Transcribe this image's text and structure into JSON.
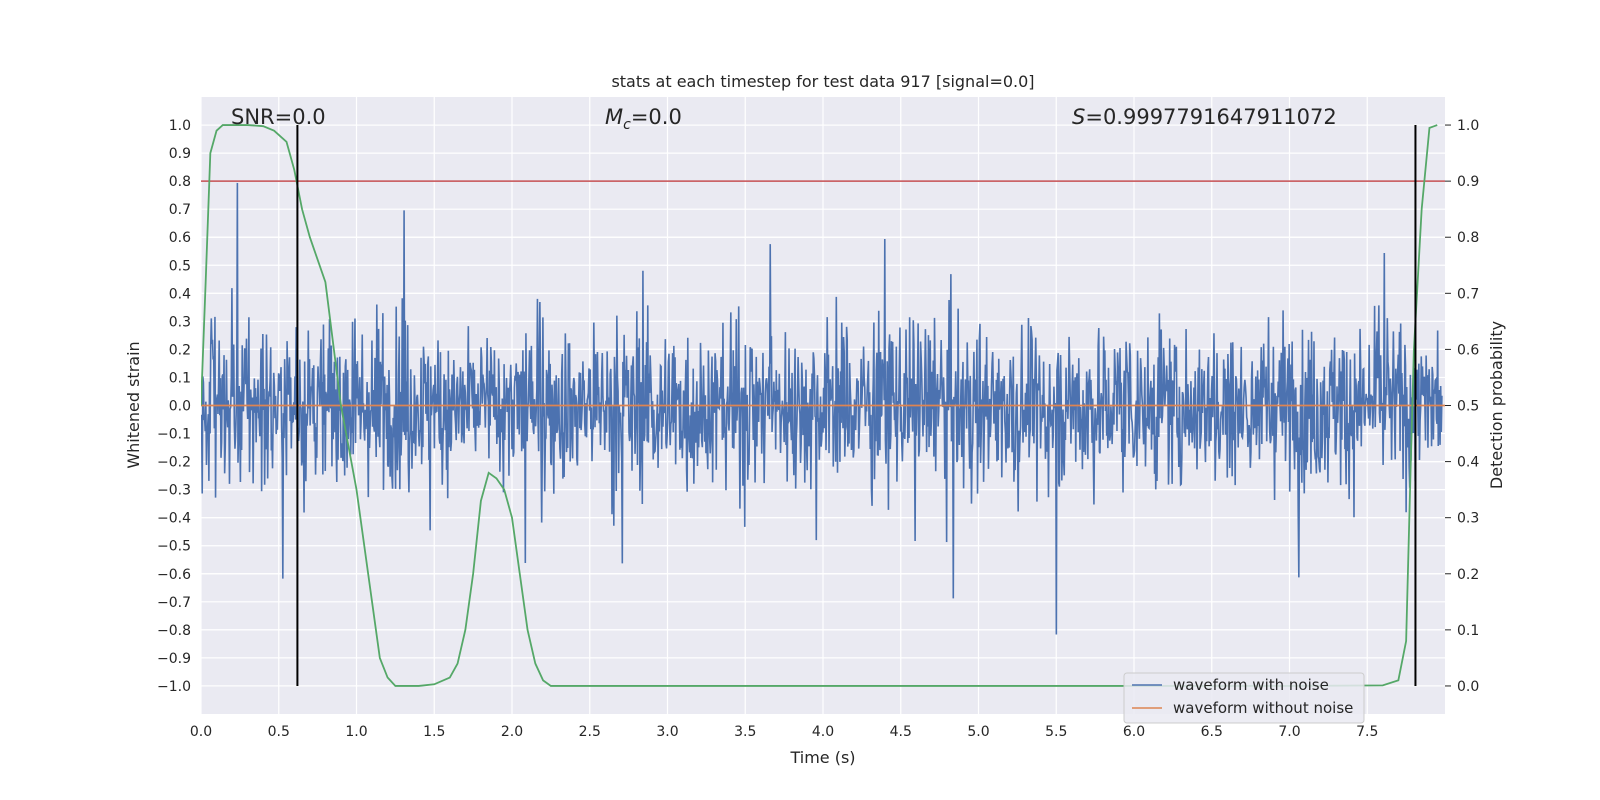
{
  "chart_data": {
    "type": "line",
    "title": "stats at each timestep for test data 917 [signal=0.0]",
    "xlabel": "Time (s)",
    "ylabel": "Whitened strain",
    "y2label": "Detection probability",
    "xlim": [
      0.0,
      8.0
    ],
    "ylim": [
      -1.1,
      1.1
    ],
    "y2lim": [
      -0.05,
      1.05
    ],
    "x_ticks": [
      "0.0",
      "0.5",
      "1.0",
      "1.5",
      "2.0",
      "2.5",
      "3.0",
      "3.5",
      "4.0",
      "4.5",
      "5.0",
      "5.5",
      "6.0",
      "6.5",
      "7.0",
      "7.5"
    ],
    "y_ticks": [
      "1.0",
      "0.9",
      "0.8",
      "0.7",
      "0.6",
      "0.5",
      "0.4",
      "0.3",
      "0.2",
      "0.1",
      "0.0",
      "−0.1",
      "−0.2",
      "−0.3",
      "−0.4",
      "−0.5",
      "−0.6",
      "−0.7",
      "−0.8",
      "−0.9",
      "−1.0"
    ],
    "y2_ticks": [
      "1.0",
      "0.9",
      "0.8",
      "0.7",
      "0.6",
      "0.5",
      "0.4",
      "0.3",
      "0.2",
      "0.1",
      "0.0"
    ],
    "annotations": {
      "snr": "SNR=0.0",
      "mc_symbol": "M",
      "mc_sub": "c",
      "mc_value": "=0.0",
      "s_symbol": "S",
      "s_value": "=0.9997791647911072"
    },
    "threshold": {
      "value": 0.9,
      "axis": "y2",
      "color": "#C44E52"
    },
    "vertical_markers": [
      0.62,
      7.81
    ],
    "series": [
      {
        "name": "waveform with noise",
        "color": "#4C72B0",
        "kind": "noise",
        "envelope": 0.62,
        "samples": 2048
      },
      {
        "name": "waveform without noise",
        "color": "#DD8452",
        "kind": "constant",
        "value": 0.0
      },
      {
        "name": "detection probability",
        "color": "#55A868",
        "axis": "y2",
        "x": [
          0.0,
          0.03,
          0.06,
          0.1,
          0.14,
          0.2,
          0.3,
          0.4,
          0.47,
          0.55,
          0.6,
          0.65,
          0.7,
          0.8,
          0.9,
          1.0,
          1.1,
          1.15,
          1.2,
          1.25,
          1.3,
          1.4,
          1.5,
          1.6,
          1.65,
          1.7,
          1.75,
          1.8,
          1.85,
          1.9,
          1.95,
          2.0,
          2.05,
          2.1,
          2.15,
          2.2,
          2.25,
          2.3,
          3.0,
          4.0,
          5.0,
          6.0,
          7.0,
          7.6,
          7.7,
          7.75,
          7.78,
          7.8,
          7.85,
          7.9,
          7.95
        ],
        "y": [
          0.5,
          0.72,
          0.95,
          0.99,
          1.0,
          1.0,
          1.0,
          0.998,
          0.99,
          0.97,
          0.92,
          0.85,
          0.8,
          0.72,
          0.5,
          0.35,
          0.15,
          0.05,
          0.015,
          0.0,
          0.0,
          0.0,
          0.003,
          0.015,
          0.04,
          0.1,
          0.2,
          0.33,
          0.38,
          0.37,
          0.35,
          0.3,
          0.2,
          0.1,
          0.04,
          0.01,
          0.0,
          0.0,
          0.0,
          0.0,
          0.0,
          0.0,
          0.0,
          0.001,
          0.01,
          0.08,
          0.4,
          0.6,
          0.85,
          0.995,
          1.0
        ]
      }
    ]
  }
}
